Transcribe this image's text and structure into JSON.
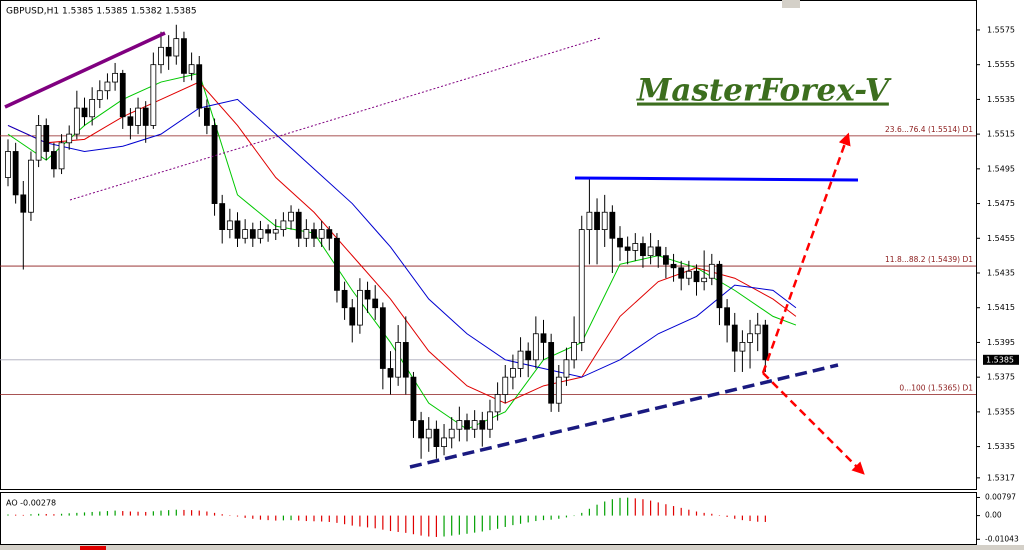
{
  "chart_data": [
    {
      "type": "candlestick",
      "title": "GBPUSD,H1  1.5385 1.5385 1.5382 1.5385",
      "watermark": "MasterForex-V",
      "open": [
        1.549,
        1.5505,
        1.548,
        1.547,
        1.55,
        1.552,
        1.5505,
        1.5495,
        1.551,
        1.5515,
        1.553,
        1.5525,
        1.5535,
        1.554,
        1.5545,
        1.555,
        1.5525,
        1.552,
        1.553,
        1.552,
        1.5555,
        1.5565,
        1.556,
        1.557,
        1.555,
        1.5555,
        1.553,
        1.552,
        1.5475,
        1.546,
        1.5465,
        1.5455,
        1.546,
        1.5455,
        1.546,
        1.5458,
        1.546,
        1.5465,
        1.547,
        1.5455,
        1.546,
        1.5455,
        1.546,
        1.5455,
        1.5425,
        1.5415,
        1.5405,
        1.5425,
        1.542,
        1.5415,
        1.538,
        1.5375,
        1.5395,
        1.5375,
        1.535,
        1.534,
        1.5345,
        1.5335,
        1.534,
        1.5345,
        1.535,
        1.5345,
        1.535,
        1.5345,
        1.5355,
        1.5365,
        1.5375,
        1.538,
        1.539,
        1.5385,
        1.54,
        1.5395,
        1.536,
        1.5375,
        1.5385,
        1.5395,
        1.546,
        1.547,
        1.546,
        1.547,
        1.5455,
        1.545,
        1.5448,
        1.5452,
        1.5445,
        1.545,
        1.5445,
        1.544,
        1.5438,
        1.5432,
        1.5436,
        1.543,
        1.5432,
        1.544,
        1.5415,
        1.5405,
        1.539,
        1.5395,
        1.54,
        1.5405
      ],
      "high": [
        1.5512,
        1.551,
        1.5488,
        1.5505,
        1.5526,
        1.5524,
        1.551,
        1.5515,
        1.552,
        1.554,
        1.5536,
        1.5542,
        1.5546,
        1.555,
        1.5556,
        1.5552,
        1.553,
        1.5536,
        1.5534,
        1.5562,
        1.5574,
        1.5572,
        1.5578,
        1.5574,
        1.5562,
        1.556,
        1.5535,
        1.5524,
        1.548,
        1.5472,
        1.547,
        1.5466,
        1.5464,
        1.5465,
        1.5463,
        1.5466,
        1.547,
        1.5474,
        1.5472,
        1.5466,
        1.5464,
        1.5465,
        1.5462,
        1.5458,
        1.543,
        1.542,
        1.5432,
        1.543,
        1.5428,
        1.5418,
        1.539,
        1.5405,
        1.541,
        1.5378,
        1.5355,
        1.5352,
        1.535,
        1.5348,
        1.5352,
        1.5358,
        1.5354,
        1.5356,
        1.5355,
        1.5362,
        1.5372,
        1.5382,
        1.5388,
        1.5398,
        1.5395,
        1.541,
        1.5408,
        1.54,
        1.5382,
        1.5392,
        1.541,
        1.5468,
        1.549,
        1.5478,
        1.548,
        1.5474,
        1.5462,
        1.5456,
        1.5458,
        1.5456,
        1.5458,
        1.5454,
        1.545,
        1.5446,
        1.5442,
        1.5442,
        1.544,
        1.5448,
        1.5446,
        1.5442,
        1.542,
        1.5412,
        1.5402,
        1.5408,
        1.5412,
        1.5408
      ],
      "low": [
        1.5485,
        1.5475,
        1.5437,
        1.5465,
        1.5496,
        1.55,
        1.549,
        1.5492,
        1.5506,
        1.5512,
        1.552,
        1.552,
        1.553,
        1.5535,
        1.554,
        1.5518,
        1.5512,
        1.5515,
        1.551,
        1.5518,
        1.555,
        1.5552,
        1.5555,
        1.5545,
        1.5546,
        1.5525,
        1.5515,
        1.5468,
        1.5452,
        1.5455,
        1.545,
        1.5452,
        1.545,
        1.5452,
        1.5453,
        1.5454,
        1.5456,
        1.546,
        1.545,
        1.545,
        1.545,
        1.545,
        1.5448,
        1.5418,
        1.5408,
        1.5395,
        1.54,
        1.5412,
        1.5408,
        1.5368,
        1.5365,
        1.537,
        1.5365,
        1.534,
        1.5328,
        1.5332,
        1.5328,
        1.533,
        1.5334,
        1.5338,
        1.5338,
        1.534,
        1.5335,
        1.534,
        1.535,
        1.536,
        1.5368,
        1.5375,
        1.5375,
        1.538,
        1.5385,
        1.5355,
        1.5355,
        1.537,
        1.538,
        1.539,
        1.544,
        1.544,
        1.545,
        1.5435,
        1.5442,
        1.544,
        1.5442,
        1.5438,
        1.544,
        1.5438,
        1.5432,
        1.543,
        1.5425,
        1.5428,
        1.5422,
        1.5425,
        1.5428,
        1.5405,
        1.5395,
        1.5378,
        1.5378,
        1.538,
        1.539,
        1.5378
      ],
      "close": [
        1.5505,
        1.548,
        1.547,
        1.55,
        1.552,
        1.5505,
        1.5495,
        1.551,
        1.5515,
        1.553,
        1.5525,
        1.5535,
        1.554,
        1.5545,
        1.555,
        1.5525,
        1.552,
        1.553,
        1.552,
        1.5555,
        1.5565,
        1.556,
        1.557,
        1.555,
        1.5555,
        1.553,
        1.552,
        1.5475,
        1.546,
        1.5465,
        1.5455,
        1.546,
        1.5455,
        1.546,
        1.5458,
        1.546,
        1.5465,
        1.547,
        1.5455,
        1.546,
        1.5455,
        1.546,
        1.5455,
        1.5425,
        1.5415,
        1.5405,
        1.5425,
        1.542,
        1.5415,
        1.538,
        1.5375,
        1.5395,
        1.5375,
        1.535,
        1.534,
        1.5345,
        1.5335,
        1.534,
        1.5345,
        1.535,
        1.5345,
        1.535,
        1.5345,
        1.5355,
        1.5365,
        1.5375,
        1.538,
        1.539,
        1.5385,
        1.54,
        1.5395,
        1.536,
        1.5375,
        1.5385,
        1.5395,
        1.546,
        1.547,
        1.546,
        1.547,
        1.5455,
        1.545,
        1.5448,
        1.5452,
        1.5445,
        1.545,
        1.5445,
        1.544,
        1.5438,
        1.5432,
        1.5436,
        1.543,
        1.5432,
        1.544,
        1.5415,
        1.5405,
        1.539,
        1.5395,
        1.54,
        1.5405,
        1.5385
      ],
      "lines": [
        {
          "color": "#00c800",
          "x": [
            0,
            5,
            10,
            15,
            20,
            25,
            30,
            35,
            40,
            45,
            50,
            55,
            60,
            65,
            70,
            75,
            80,
            85,
            90,
            95,
            100,
            103
          ],
          "values": [
            1.5515,
            1.55,
            1.552,
            1.5535,
            1.5545,
            1.555,
            1.548,
            1.5462,
            1.5458,
            1.5425,
            1.5395,
            1.536,
            1.5345,
            1.5355,
            1.5385,
            1.5395,
            1.544,
            1.5445,
            1.5438,
            1.5425,
            1.541,
            1.5405
          ]
        },
        {
          "color": "#e00000",
          "x": [
            0,
            5,
            10,
            15,
            20,
            25,
            30,
            35,
            40,
            45,
            50,
            55,
            60,
            65,
            70,
            75,
            80,
            85,
            90,
            95,
            100,
            103
          ],
          "values": [
            1.552,
            1.551,
            1.5512,
            1.5525,
            1.5535,
            1.5545,
            1.552,
            1.549,
            1.547,
            1.5445,
            1.542,
            1.539,
            1.537,
            1.536,
            1.537,
            1.5375,
            1.541,
            1.543,
            1.5438,
            1.5432,
            1.542,
            1.541
          ]
        },
        {
          "color": "#0000d0",
          "x": [
            0,
            5,
            10,
            15,
            20,
            25,
            30,
            35,
            40,
            45,
            50,
            55,
            60,
            65,
            70,
            75,
            80,
            85,
            90,
            95,
            100,
            103
          ],
          "values": [
            1.552,
            1.551,
            1.5505,
            1.5508,
            1.5515,
            1.553,
            1.5535,
            1.5515,
            1.5495,
            1.5475,
            1.545,
            1.542,
            1.54,
            1.5385,
            1.538,
            1.5375,
            1.5385,
            1.54,
            1.541,
            1.5428,
            1.5425,
            1.5415
          ]
        }
      ],
      "levels": [
        {
          "value": 1.5514,
          "label": "23.6...76.4 (1.5514) D1"
        },
        {
          "value": 1.5439,
          "label": "11.8...88.2 (1.5439) D1"
        },
        {
          "value": 1.5365,
          "label": "0...100 (1.5365) D1"
        }
      ],
      "last_price": 1.5385,
      "ylim": [
        1.531,
        1.55865
      ],
      "yticks": [
        1.5575,
        1.5555,
        1.5535,
        1.5515,
        1.5495,
        1.5475,
        1.5455,
        1.5435,
        1.5415,
        1.5395,
        1.5375,
        1.5355,
        1.5335,
        1.5317
      ],
      "up_color": "#ffffff",
      "down_color": "#000000"
    },
    {
      "type": "bar",
      "title": "AO -0.00278",
      "values": [
        0.0005,
        0.0004,
        0.0003,
        0.0006,
        0.0008,
        0.0007,
        0.0006,
        0.0008,
        0.001,
        0.0012,
        0.0014,
        0.0016,
        0.0018,
        0.002,
        0.0022,
        0.002,
        0.0018,
        0.0017,
        0.0016,
        0.0019,
        0.0022,
        0.0024,
        0.0026,
        0.0025,
        0.0024,
        0.0022,
        0.0018,
        0.0012,
        0.0006,
        0.0002,
        -0.0004,
        -0.001,
        -0.0014,
        -0.0018,
        -0.002,
        -0.0022,
        -0.0021,
        -0.002,
        -0.0022,
        -0.0024,
        -0.0025,
        -0.0026,
        -0.0028,
        -0.0032,
        -0.0038,
        -0.0044,
        -0.0048,
        -0.0052,
        -0.0056,
        -0.0062,
        -0.0068,
        -0.0072,
        -0.0076,
        -0.0082,
        -0.0088,
        -0.0092,
        -0.0094,
        -0.0092,
        -0.0088,
        -0.0084,
        -0.008,
        -0.0075,
        -0.007,
        -0.0064,
        -0.0058,
        -0.005,
        -0.0042,
        -0.0036,
        -0.003,
        -0.0024,
        -0.002,
        -0.0018,
        -0.0014,
        -0.0008,
        -0.0002,
        0.0012,
        0.003,
        0.0048,
        0.0062,
        0.0072,
        0.0078,
        0.0079,
        0.0076,
        0.0072,
        0.0066,
        0.0058,
        0.005,
        0.0042,
        0.0034,
        0.0026,
        0.0018,
        0.0012,
        0.0008,
        0.0002,
        -0.0006,
        -0.0014,
        -0.002,
        -0.0024,
        -0.0027,
        -0.0028
      ],
      "ylim": [
        -0.0125,
        0.0095
      ],
      "yticks": [
        0.00797,
        {
          "value": 0,
          "label": "0.00"
        },
        -0.01043
      ],
      "up_color": "#00a000",
      "down_color": "#e00000"
    }
  ]
}
